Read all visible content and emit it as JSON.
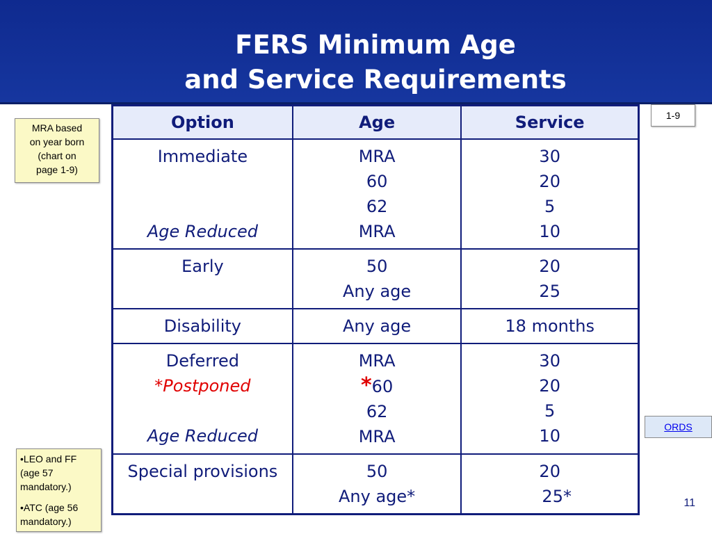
{
  "title": {
    "line1": "FERS Minimum Age",
    "line2": "and Service Requirements"
  },
  "colors": {
    "header_bg": "#13319a",
    "table_text": "#101c7a",
    "postponed_red": "#e00000",
    "note_bg": "#fbf9c6"
  },
  "table": {
    "headers": [
      "Option",
      "Age",
      "Service"
    ],
    "immediate": {
      "option": "Immediate",
      "option_reduced": "Age Reduced",
      "ages": [
        "MRA",
        "60",
        "62",
        "MRA"
      ],
      "service": [
        "30",
        "20",
        "5",
        "10"
      ]
    },
    "early": {
      "option": "Early",
      "ages": [
        "50",
        "Any age"
      ],
      "service": [
        "20",
        "25"
      ]
    },
    "disability": {
      "option": "Disability",
      "age": "Any age",
      "service": "18 months"
    },
    "deferred": {
      "option": "Deferred",
      "option_postponed": "*Postponed",
      "option_reduced": "Age Reduced",
      "ages": [
        "MRA",
        "60",
        "62",
        "MRA"
      ],
      "star": "*",
      "service": [
        "30",
        "20",
        "5",
        "10"
      ]
    },
    "special": {
      "option": "Special provisions",
      "ages": [
        "50",
        "Any age*"
      ],
      "service": [
        "20",
        "25*"
      ]
    }
  },
  "notes": {
    "mra": [
      "MRA based",
      "on year born",
      "(chart on",
      "page 1-9)"
    ],
    "leo": [
      "•LEO and FF",
      "(age 57",
      "mandatory.)",
      "•ATC (age 56",
      "mandatory.)"
    ]
  },
  "page_ref": "1-9",
  "ords_link": "ORDS",
  "slide_number": "11"
}
